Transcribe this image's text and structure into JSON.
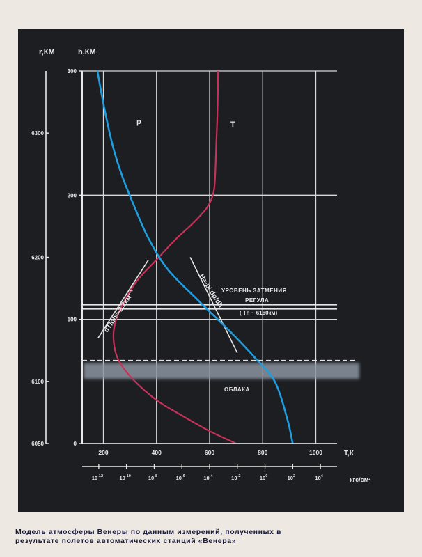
{
  "caption": {
    "line1": "Модель атмосферы Венеры по данным измерений, полученных в",
    "line2": "результате полетов автоматических станций «Венера»"
  },
  "chart_data": {
    "type": "line",
    "axes": {
      "left_outer_label": "r,КМ",
      "left_inner_label": "h,КМ",
      "r_ticks": [
        "6050",
        "6100",
        "6200",
        "6300"
      ],
      "r_values": [
        6050,
        6100,
        6200,
        6300
      ],
      "h_ticks": [
        "0",
        "100",
        "200",
        "300"
      ],
      "h_values": [
        0,
        100,
        200,
        300
      ],
      "h_lim": [
        0,
        300
      ],
      "T_label": "T,К",
      "T_ticks": [
        "200",
        "400",
        "600",
        "800",
        "1000"
      ],
      "T_values": [
        200,
        400,
        600,
        800,
        1000
      ],
      "T_lim": [
        120,
        1080
      ],
      "p_label": "кгс/см²",
      "p_tick_exps": [
        "-12",
        "-10",
        "-8",
        "-6",
        "-4",
        "-2",
        "0",
        "2",
        "4"
      ],
      "p_tick_base": "10",
      "p_log_lim": [
        -13.2,
        5.2
      ]
    },
    "series": [
      {
        "name": "T",
        "color": "#c8325a",
        "axis": "T",
        "points": [
          [
            700,
            0
          ],
          [
            600,
            10
          ],
          [
            500,
            22
          ],
          [
            400,
            35
          ],
          [
            310,
            52
          ],
          [
            255,
            68
          ],
          [
            238,
            85
          ],
          [
            248,
            100
          ],
          [
            280,
            115
          ],
          [
            330,
            132
          ],
          [
            400,
            148
          ],
          [
            470,
            164
          ],
          [
            540,
            178
          ],
          [
            590,
            190
          ],
          [
            612,
            200
          ],
          [
            620,
            212
          ],
          [
            625,
            240
          ],
          [
            630,
            270
          ],
          [
            632,
            300
          ]
        ]
      },
      {
        "name": "p",
        "color": "#1e9ee0",
        "axis": "p",
        "points": [
          [
            2,
            0
          ],
          [
            1.6,
            20
          ],
          [
            0.7,
            50
          ],
          [
            -0.8,
            70
          ],
          [
            -2.5,
            90
          ],
          [
            -4.8,
            115
          ],
          [
            -7,
            140
          ],
          [
            -8.4,
            165
          ],
          [
            -9.4,
            190
          ],
          [
            -10.3,
            215
          ],
          [
            -11,
            240
          ],
          [
            -11.6,
            270
          ],
          [
            -12.1,
            300
          ]
        ]
      }
    ],
    "annotations": {
      "series_label_p": "p",
      "series_label_t": "T",
      "gradient_label": "dT/dh≈-2,2км⁻¹",
      "scale_height_label": "H≈-p/ dp/dh",
      "occultation_line1": "УРОВЕНЬ ЗАТМЕНИЯ",
      "occultation_line2": "РЕГУЛА",
      "occultation_line3": "( Tп ~ 6160км)",
      "occultation_h": 110,
      "clouds_label": "ОБЛАКА",
      "clouds_top_h": 67,
      "clouds_bottom_h": 52
    },
    "grid": true
  }
}
